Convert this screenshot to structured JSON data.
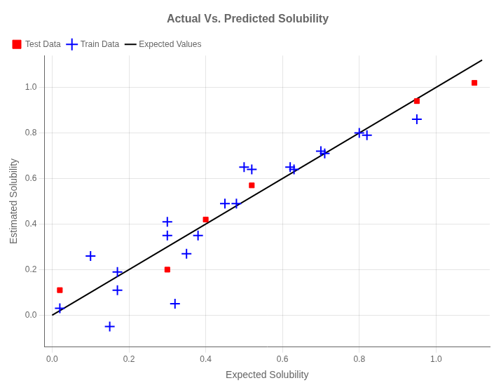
{
  "chart_data": {
    "type": "scatter",
    "title": "Actual Vs. Predicted Solubility",
    "xlabel": "Expected Solubility",
    "ylabel": "Estimated Solubility",
    "series": [
      {
        "name": "Expected Values",
        "type": "line",
        "color": "black",
        "line_style": "solid",
        "x": [
          0.0,
          1.12
        ],
        "values": [
          0.0,
          1.12
        ]
      },
      {
        "name": "Train Data",
        "type": "scatter",
        "color": "blue",
        "marker": "plus",
        "x": [
          0.02,
          0.1,
          0.15,
          0.17,
          0.17,
          0.3,
          0.3,
          0.32,
          0.35,
          0.38,
          0.45,
          0.48,
          0.5,
          0.52,
          0.62,
          0.63,
          0.7,
          0.71,
          0.8,
          0.82,
          0.95
        ],
        "values": [
          0.03,
          0.26,
          -0.05,
          0.19,
          0.11,
          0.41,
          0.35,
          0.05,
          0.27,
          0.35,
          0.49,
          0.49,
          0.65,
          0.64,
          0.65,
          0.64,
          0.72,
          0.71,
          0.8,
          0.79,
          0.86
        ]
      },
      {
        "name": "Test Data",
        "type": "scatter",
        "color": "red",
        "marker": "square",
        "x": [
          0.02,
          0.3,
          0.4,
          0.52,
          0.95,
          1.1
        ],
        "values": [
          0.11,
          0.2,
          0.42,
          0.57,
          0.94,
          1.02
        ]
      }
    ],
    "xlim": [
      -0.02,
      1.14
    ],
    "ylim": [
      -0.14,
      1.14
    ],
    "xticks": [
      {
        "value": 0,
        "label": "0.0"
      },
      0.2,
      0.4,
      0.6,
      0.8,
      {
        "value": 1,
        "label": "1.0"
      }
    ],
    "yticks": [
      {
        "value": 0,
        "label": "0.0"
      },
      0.2,
      0.4,
      0.6,
      0.8,
      {
        "value": 1,
        "label": "1.0"
      }
    ],
    "grid": true,
    "legend": "upper left"
  }
}
